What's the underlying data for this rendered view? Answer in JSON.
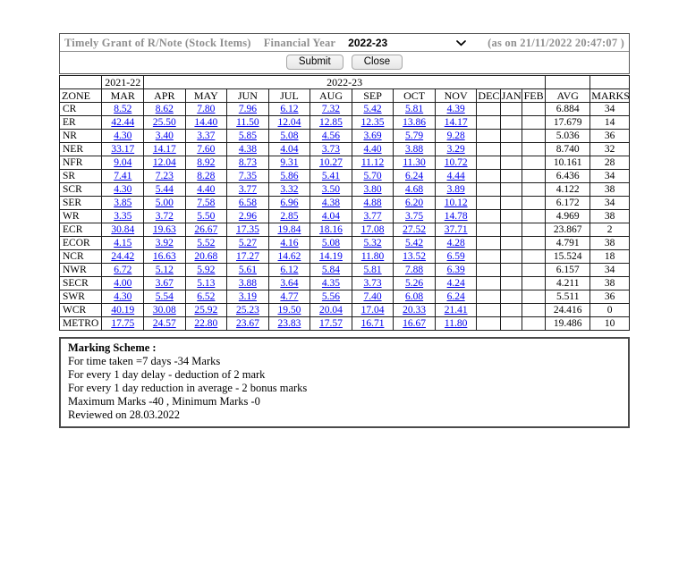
{
  "header": {
    "title": "Timely Grant of R/Note (Stock Items)",
    "financial_year_label": "Financial Year",
    "financial_year_value": "2022-23",
    "as_on": "(as on 21/11/2022 20:47:07 )",
    "submit_label": "Submit",
    "close_label": "Close"
  },
  "table": {
    "year_row": {
      "prev_year": "2021-22",
      "curr_year": "2022-23"
    },
    "columns": [
      "ZONE",
      "MAR",
      "APR",
      "MAY",
      "JUN",
      "JUL",
      "AUG",
      "SEP",
      "OCT",
      "NOV",
      "DEC",
      "JAN",
      "FEB",
      "AVG",
      "MARKS"
    ],
    "rows": [
      {
        "zone": "CR",
        "values": [
          "8.52",
          "8.62",
          "7.80",
          "7.96",
          "6.12",
          "7.32",
          "5.42",
          "5.81",
          "4.39",
          "",
          "",
          ""
        ],
        "avg": "6.884",
        "marks": "34"
      },
      {
        "zone": "ER",
        "values": [
          "42.44",
          "25.50",
          "14.40",
          "11.50",
          "12.04",
          "12.85",
          "12.35",
          "13.86",
          "14.17",
          "",
          "",
          ""
        ],
        "avg": "17.679",
        "marks": "14"
      },
      {
        "zone": "NR",
        "values": [
          "4.30",
          "3.40",
          "3.37",
          "5.85",
          "5.08",
          "4.56",
          "3.69",
          "5.79",
          "9.28",
          "",
          "",
          ""
        ],
        "avg": "5.036",
        "marks": "36"
      },
      {
        "zone": "NER",
        "values": [
          "33.17",
          "14.17",
          "7.60",
          "4.38",
          "4.04",
          "3.73",
          "4.40",
          "3.88",
          "3.29",
          "",
          "",
          ""
        ],
        "avg": "8.740",
        "marks": "32"
      },
      {
        "zone": "NFR",
        "values": [
          "9.04",
          "12.04",
          "8.92",
          "8.73",
          "9.31",
          "10.27",
          "11.12",
          "11.30",
          "10.72",
          "",
          "",
          ""
        ],
        "avg": "10.161",
        "marks": "28"
      },
      {
        "zone": "SR",
        "values": [
          "7.41",
          "7.23",
          "8.28",
          "7.35",
          "5.86",
          "5.41",
          "5.70",
          "6.24",
          "4.44",
          "",
          "",
          ""
        ],
        "avg": "6.436",
        "marks": "34"
      },
      {
        "zone": "SCR",
        "values": [
          "4.30",
          "5.44",
          "4.40",
          "3.77",
          "3.32",
          "3.50",
          "3.80",
          "4.68",
          "3.89",
          "",
          "",
          ""
        ],
        "avg": "4.122",
        "marks": "38"
      },
      {
        "zone": "SER",
        "values": [
          "3.85",
          "5.00",
          "7.58",
          "6.58",
          "6.96",
          "4.38",
          "4.88",
          "6.20",
          "10.12",
          "",
          "",
          ""
        ],
        "avg": "6.172",
        "marks": "34"
      },
      {
        "zone": "WR",
        "values": [
          "3.35",
          "3.72",
          "5.50",
          "2.96",
          "2.85",
          "4.04",
          "3.77",
          "3.75",
          "14.78",
          "",
          "",
          ""
        ],
        "avg": "4.969",
        "marks": "38"
      },
      {
        "zone": "ECR",
        "values": [
          "30.84",
          "19.63",
          "26.67",
          "17.35",
          "19.84",
          "18.16",
          "17.08",
          "27.52",
          "37.71",
          "",
          "",
          ""
        ],
        "avg": "23.867",
        "marks": "2"
      },
      {
        "zone": "ECOR",
        "values": [
          "4.15",
          "3.92",
          "5.52",
          "5.27",
          "4.16",
          "5.08",
          "5.32",
          "5.42",
          "4.28",
          "",
          "",
          ""
        ],
        "avg": "4.791",
        "marks": "38"
      },
      {
        "zone": "NCR",
        "values": [
          "24.42",
          "16.63",
          "20.68",
          "17.27",
          "14.62",
          "14.19",
          "11.80",
          "13.52",
          "6.59",
          "",
          "",
          ""
        ],
        "avg": "15.524",
        "marks": "18"
      },
      {
        "zone": "NWR",
        "values": [
          "6.72",
          "5.12",
          "5.92",
          "5.61",
          "6.12",
          "5.84",
          "5.81",
          "7.88",
          "6.39",
          "",
          "",
          ""
        ],
        "avg": "6.157",
        "marks": "34"
      },
      {
        "zone": "SECR",
        "values": [
          "4.00",
          "3.67",
          "5.13",
          "3.88",
          "3.64",
          "4.35",
          "3.73",
          "5.26",
          "4.24",
          "",
          "",
          ""
        ],
        "avg": "4.211",
        "marks": "38"
      },
      {
        "zone": "SWR",
        "values": [
          "4.30",
          "5.54",
          "6.52",
          "3.19",
          "4.77",
          "5.56",
          "7.40",
          "6.08",
          "6.24",
          "",
          "",
          ""
        ],
        "avg": "5.511",
        "marks": "36"
      },
      {
        "zone": "WCR",
        "values": [
          "40.19",
          "30.08",
          "25.92",
          "25.23",
          "19.50",
          "20.04",
          "17.04",
          "20.33",
          "21.41",
          "",
          "",
          ""
        ],
        "avg": "24.416",
        "marks": "0"
      },
      {
        "zone": "METRO",
        "values": [
          "17.75",
          "24.57",
          "22.80",
          "23.67",
          "23.83",
          "17.57",
          "16.71",
          "16.67",
          "11.80",
          "",
          "",
          ""
        ],
        "avg": "19.486",
        "marks": "10"
      }
    ]
  },
  "marking_scheme": {
    "heading": "Marking Scheme :",
    "lines": [
      "For time taken =7 days -34 Marks",
      "For every 1 day delay - deduction of 2 mark",
      "For every 1 day reduction in average - 2 bonus marks",
      "Maximum Marks -40 , Minimum Marks -0",
      "Reviewed on 28.03.2022"
    ]
  },
  "colors": {
    "link_blue": "#0000EE",
    "muted_gray": "#8f8f8f"
  }
}
